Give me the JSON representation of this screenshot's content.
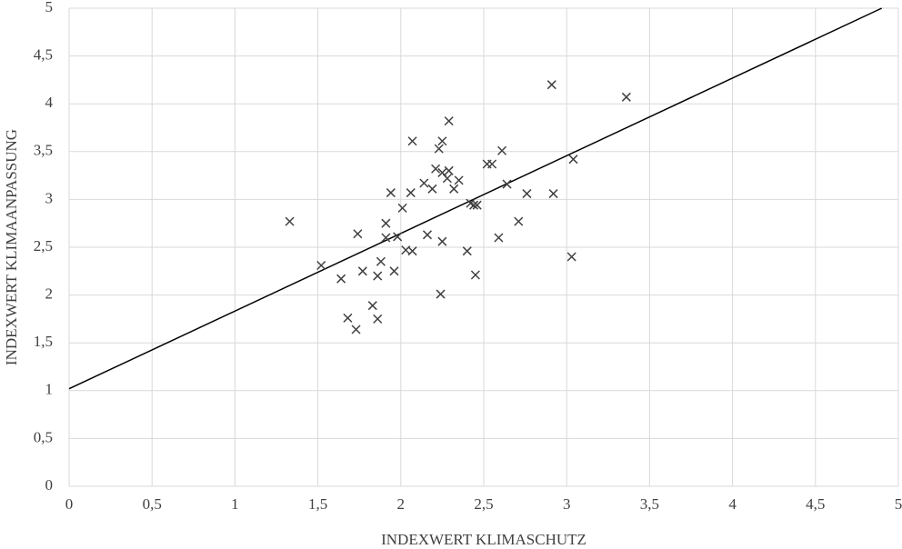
{
  "chart_data": {
    "type": "scatter",
    "x_label": "INDEXWERT KLIMASCHUTZ",
    "y_label": "INDEXWERT KLIMAANPASSUNG",
    "x": [
      1.33,
      1.52,
      1.64,
      1.74,
      1.77,
      1.68,
      1.73,
      1.83,
      1.86,
      1.86,
      1.88,
      1.91,
      1.91,
      1.94,
      1.96,
      1.98,
      2.01,
      2.03,
      2.07,
      2.06,
      2.07,
      2.14,
      2.16,
      2.19,
      2.21,
      2.23,
      2.25,
      2.25,
      2.25,
      2.24,
      2.28,
      2.29,
      2.29,
      2.32,
      2.35,
      2.4,
      2.42,
      2.44,
      2.46,
      2.45,
      2.52,
      2.55,
      2.59,
      2.61,
      2.64,
      2.71,
      2.76,
      2.91,
      2.92,
      3.03,
      3.04,
      3.36
    ],
    "values": [
      2.77,
      2.31,
      2.17,
      2.64,
      2.25,
      1.76,
      1.64,
      1.89,
      1.75,
      2.2,
      2.35,
      2.75,
      2.6,
      3.07,
      2.25,
      2.61,
      2.91,
      2.47,
      2.46,
      3.07,
      3.61,
      3.17,
      2.63,
      3.11,
      3.32,
      3.53,
      3.61,
      3.28,
      2.56,
      2.01,
      3.22,
      3.3,
      3.82,
      3.11,
      3.2,
      2.46,
      2.96,
      2.94,
      2.94,
      2.21,
      3.37,
      3.37,
      2.6,
      3.51,
      3.16,
      2.77,
      3.06,
      4.2,
      3.06,
      2.4,
      3.42,
      4.07
    ],
    "color": "#404040",
    "trendline": {
      "x": [
        0,
        4.9
      ],
      "y": [
        1.02,
        5
      ],
      "color": "#000000"
    },
    "xlim": [
      0,
      5
    ],
    "ylim": [
      0,
      5
    ],
    "xticks": [
      0,
      {
        "value": 0.5,
        "label": "0,5"
      },
      1,
      {
        "value": 1.5,
        "label": "1,5"
      },
      2,
      {
        "value": 2.5,
        "label": "2,5"
      },
      3,
      {
        "value": 3.5,
        "label": "3,5"
      },
      4,
      {
        "value": 4.5,
        "label": "4,5"
      },
      5
    ],
    "yticks": [
      0,
      {
        "value": 0.5,
        "label": "0,5"
      },
      1,
      {
        "value": 1.5,
        "label": "1,5"
      },
      2,
      {
        "value": 2.5,
        "label": "2,5"
      },
      3,
      {
        "value": 3.5,
        "label": "3,5"
      },
      4,
      {
        "value": 4.5,
        "label": "4,5"
      },
      5
    ],
    "grid": true
  }
}
